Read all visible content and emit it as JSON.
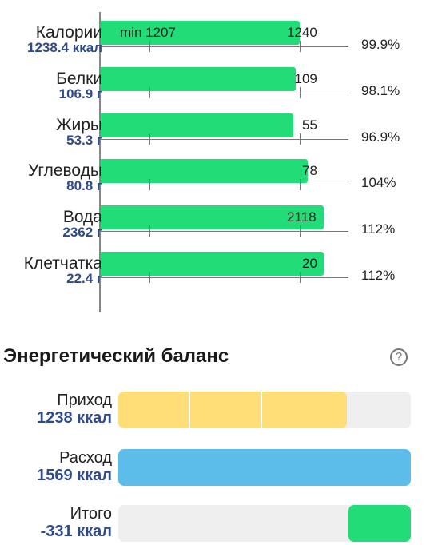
{
  "nutrients": [
    {
      "name": "Калории",
      "value": "1238.4",
      "unit": "ккал",
      "target": "1240",
      "min": "min 1207",
      "percent": "99.9%",
      "fraction": 0.999
    },
    {
      "name": "Белки",
      "value": "106.9",
      "unit": "г",
      "target": "109",
      "percent": "98.1%",
      "fraction": 0.981
    },
    {
      "name": "Жиры",
      "value": "53.3",
      "unit": "г",
      "target": "55",
      "percent": "96.9%",
      "fraction": 0.969
    },
    {
      "name": "Углеводы",
      "value": "80.8",
      "unit": "г",
      "target": "78",
      "percent": "104%",
      "fraction": 1.04
    },
    {
      "name": "Вода",
      "value": "2362",
      "unit": "г",
      "target": "2118",
      "percent": "112%",
      "fraction": 1.12
    },
    {
      "name": "Клетчатка",
      "value": "22.4",
      "unit": "г",
      "target": "20",
      "percent": "112%",
      "fraction": 1.12
    }
  ],
  "energy_balance": {
    "title": "Энергетический баланс",
    "help_icon": "question-circle-icon",
    "help_glyph": "?",
    "rows": [
      {
        "name": "Приход",
        "value": "1238 ккал",
        "kcal": 1238,
        "color": "#ffdd77"
      },
      {
        "name": "Расход",
        "value": "1569 ккал",
        "kcal": 1569,
        "color": "#5cbdea"
      },
      {
        "name": "Итого",
        "value": "-331 ккал",
        "kcal": -331,
        "color": "#22dd77"
      }
    ]
  },
  "colors": {
    "nutrient_bar": "#22dd77",
    "value_text": "#2e4a8a",
    "track": "#efefef"
  }
}
